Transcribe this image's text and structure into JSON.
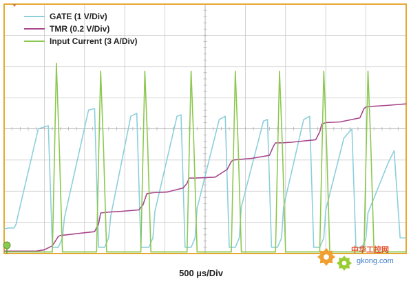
{
  "chart_data": {
    "type": "line",
    "title": "",
    "xlabel": "500 µs/Div",
    "ylabel": "",
    "x_divisions": 10,
    "y_divisions": 8,
    "grid": true,
    "legend_position": "top-left",
    "frame_color": "#e6a832",
    "grid_color": "#c8c8c8",
    "series": [
      {
        "name": "GATE (1 V/Div)",
        "color": "#8ccfdc",
        "x": [
          0,
          0.1,
          0.25,
          0.3,
          0.35,
          0.85,
          1.1,
          1.2,
          1.35,
          1.45,
          1.5,
          2.1,
          2.25,
          2.35,
          2.5,
          2.6,
          2.65,
          3.15,
          3.3,
          3.4,
          3.6,
          3.7,
          3.75,
          4.3,
          4.4,
          4.5,
          4.65,
          4.75,
          4.8,
          5.35,
          5.5,
          5.6,
          5.75,
          5.85,
          5.9,
          6.45,
          6.55,
          6.65,
          6.8,
          6.9,
          6.95,
          7.45,
          7.6,
          7.7,
          7.85,
          7.95,
          8.0,
          8.45,
          8.65,
          8.75,
          8.9,
          9.0,
          9.05,
          9.55,
          9.7,
          9.85,
          10
        ],
        "y": [
          0.78,
          0.82,
          0.82,
          0.95,
          1.25,
          4.0,
          4.1,
          0.2,
          0.2,
          0.5,
          1.15,
          4.6,
          4.65,
          0.2,
          0.2,
          0.5,
          1.2,
          4.4,
          4.5,
          0.2,
          0.2,
          0.5,
          1.35,
          4.4,
          4.45,
          0.2,
          0.2,
          0.5,
          1.45,
          4.3,
          4.4,
          0.2,
          0.2,
          0.5,
          1.5,
          4.25,
          4.3,
          0.2,
          0.2,
          0.5,
          1.5,
          4.3,
          4.4,
          0.2,
          0.2,
          0.5,
          1.4,
          3.7,
          4.0,
          0.2,
          0.2,
          0.5,
          1.3,
          2.9,
          3.3,
          0.5,
          0.5
        ]
      },
      {
        "name": "TMR (0.2 V/Div)",
        "color": "#a8468c",
        "x": [
          0,
          0.8,
          1.0,
          1.2,
          1.35,
          1.4,
          1.55,
          1.75,
          2.25,
          2.35,
          2.4,
          2.6,
          2.9,
          3.35,
          3.45,
          3.55,
          3.7,
          4.05,
          4.45,
          4.55,
          4.6,
          4.75,
          5.25,
          5.55,
          5.65,
          5.7,
          5.85,
          6.15,
          6.6,
          6.7,
          6.75,
          6.9,
          7.15,
          7.75,
          7.85,
          7.9,
          8.0,
          8.35,
          8.85,
          8.95,
          9.0,
          9.15,
          9.5,
          10
        ],
        "y": [
          0.08,
          0.08,
          0.12,
          0.25,
          0.55,
          0.58,
          0.6,
          0.63,
          0.7,
          0.95,
          1.3,
          1.33,
          1.35,
          1.4,
          1.55,
          1.92,
          1.95,
          1.97,
          2.1,
          2.25,
          2.42,
          2.42,
          2.45,
          2.7,
          2.95,
          3.0,
          3.02,
          3.05,
          3.15,
          3.45,
          3.55,
          3.55,
          3.57,
          3.65,
          3.9,
          4.15,
          4.2,
          4.22,
          4.35,
          4.65,
          4.7,
          4.72,
          4.75,
          4.8
        ]
      },
      {
        "name": "Input Current (3 A/Div)",
        "color": "#8cc850",
        "x": [
          0,
          1.2,
          1.25,
          1.3,
          1.37,
          1.45,
          2.3,
          2.35,
          2.4,
          2.47,
          2.55,
          3.4,
          3.45,
          3.5,
          3.57,
          3.65,
          4.55,
          4.6,
          4.65,
          4.72,
          4.8,
          5.65,
          5.7,
          5.75,
          5.82,
          5.9,
          6.75,
          6.8,
          6.85,
          6.92,
          7.0,
          7.85,
          7.9,
          7.95,
          8.02,
          8.1,
          8.95,
          9.0,
          9.05,
          9.12,
          9.2,
          10
        ],
        "y": [
          0.05,
          0.05,
          3.0,
          6.1,
          3.5,
          0.05,
          0.05,
          3.0,
          5.85,
          3.5,
          0.05,
          0.05,
          3.0,
          5.85,
          3.5,
          0.05,
          0.05,
          3.0,
          5.85,
          3.5,
          0.05,
          0.05,
          3.0,
          5.85,
          3.5,
          0.05,
          0.05,
          3.0,
          5.85,
          3.5,
          0.05,
          0.05,
          3.0,
          5.85,
          3.5,
          0.05,
          0.05,
          3.0,
          5.85,
          3.5,
          0.05,
          0.05
        ]
      }
    ]
  },
  "watermark": {
    "cn_text": "中华工控网",
    "en_text": "gkong.com",
    "gear_color_1": "#f0a030",
    "gear_color_2": "#9acd32"
  }
}
